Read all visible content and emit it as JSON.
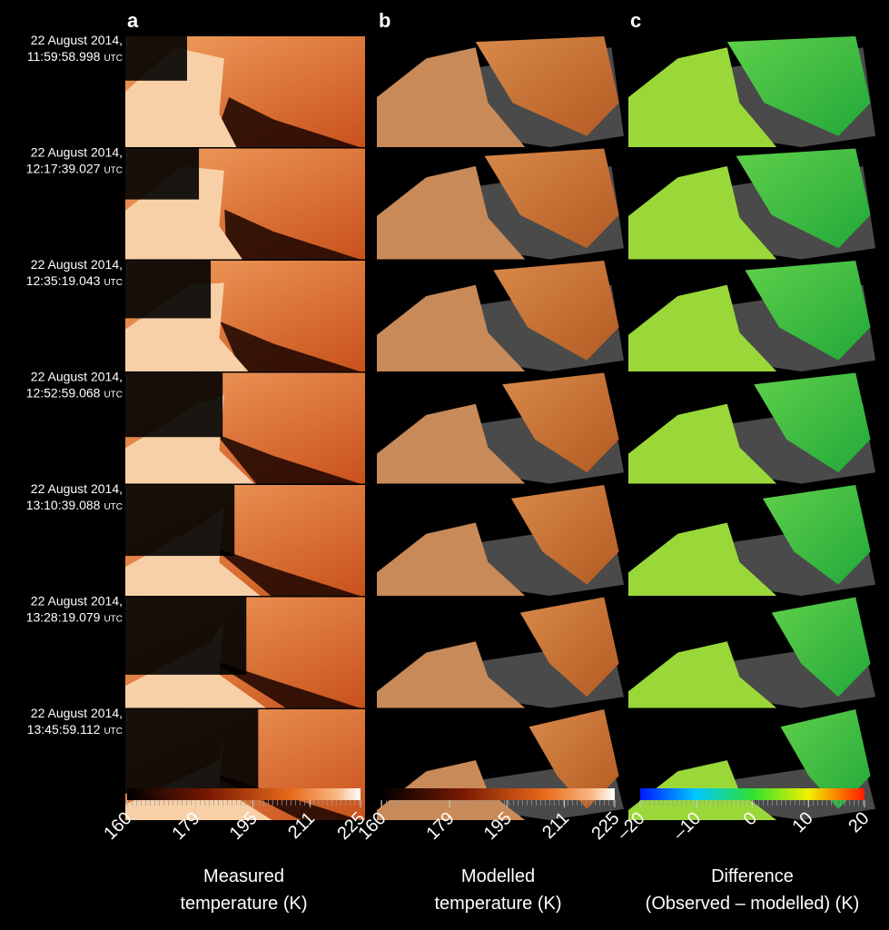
{
  "panel_labels": [
    "a",
    "b",
    "c"
  ],
  "rows": [
    {
      "date": "22 August 2014,",
      "time": "11:59:58.998",
      "zone": "UTC"
    },
    {
      "date": "22 August 2014,",
      "time": "12:17:39.027",
      "zone": "UTC"
    },
    {
      "date": "22 August 2014,",
      "time": "12:35:19.043",
      "zone": "UTC"
    },
    {
      "date": "22 August 2014,",
      "time": "12:52:59.068",
      "zone": "UTC"
    },
    {
      "date": "22 August 2014,",
      "time": "13:10:39.088",
      "zone": "UTC"
    },
    {
      "date": "22 August 2014,",
      "time": "13:28:19.079",
      "zone": "UTC"
    },
    {
      "date": "22 August 2014,",
      "time": "13:45:59.112",
      "zone": "UTC"
    }
  ],
  "colorbars": [
    {
      "lim": [
        160,
        225
      ],
      "ticks": [
        160,
        179,
        195,
        211,
        225
      ],
      "title": [
        "Measured",
        "temperature (K)"
      ]
    },
    {
      "lim": [
        160,
        225
      ],
      "ticks": [
        160,
        179,
        195,
        211,
        225
      ],
      "title": [
        "Modelled",
        "temperature (K)"
      ]
    },
    {
      "lim": [
        -20,
        20
      ],
      "ticks": [
        {
          "value": -20,
          "label": "–20"
        },
        {
          "value": -10,
          "label": "–10"
        },
        0,
        10,
        20
      ],
      "title": [
        "Difference",
        "(Observed – modelled) (K)"
      ]
    }
  ]
}
